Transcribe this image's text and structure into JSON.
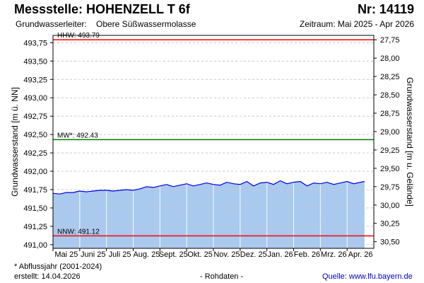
{
  "header": {
    "title": "Messstelle: HOHENZELL T 6f",
    "number": "Nr: 14119",
    "aquifer_label": "Grundwasserleiter:",
    "aquifer": "Obere Süßwassermolasse",
    "period": "Zeitraum: Mai 2025 - Apr 2026"
  },
  "footer": {
    "note": "* Abflussjahr (2001-2024)",
    "created": "erstellt:  14.04.2026",
    "raw": "- Rohdaten -",
    "source": "Quelle:  www.lfu.bayern.de"
  },
  "chart_data": {
    "type": "area",
    "ylabel_left": "Grundwasserstand [m ü. NN]",
    "ylabel_right": "Grundwasserstand [m u. Gelände]",
    "ylim": [
      490.95,
      493.85
    ],
    "y_ticks_left": [
      "491,00",
      "491,25",
      "491,50",
      "491,75",
      "492,00",
      "492,25",
      "492,50",
      "492,75",
      "493,00",
      "493,25",
      "493,50",
      "493,75"
    ],
    "y_ticks_left_values": [
      491.0,
      491.25,
      491.5,
      491.75,
      492.0,
      492.25,
      492.5,
      492.75,
      493.0,
      493.25,
      493.5,
      493.75
    ],
    "y_ticks_right": [
      "27,75",
      "28,00",
      "28,25",
      "28,50",
      "28,75",
      "29,00",
      "29,25",
      "29,50",
      "29,75",
      "30,00",
      "30,25",
      "30,50"
    ],
    "y_ticks_right_values": [
      27.75,
      28.0,
      28.25,
      28.5,
      28.75,
      29.0,
      29.25,
      29.5,
      29.75,
      30.0,
      30.25,
      30.5
    ],
    "right_axis_offset": 521.54,
    "x_ticks": [
      "Mai 25",
      "Juni 25",
      "Juli 25",
      "Aug. 25",
      "Sept. 25",
      "Okt. 25",
      "Nov. 25",
      "Dez. 25",
      "Jan. 26",
      "Feb. 26",
      "Mrz. 26",
      "Apr. 26"
    ],
    "x_range_months": [
      0,
      12
    ],
    "grid": true,
    "reference_lines": [
      {
        "label": "HHW: 493.79",
        "value": 493.79,
        "color": "#ff0000"
      },
      {
        "label": "MW*: 492.43",
        "value": 492.43,
        "color": "#008000"
      },
      {
        "label": "NNW: 491.12",
        "value": 491.12,
        "color": "#ff0000"
      }
    ],
    "series_color": "#0000dd",
    "fill_color": "#a9c9ef",
    "series": [
      {
        "x": [
          0.0,
          0.25,
          0.5,
          0.75,
          1.0,
          1.25,
          1.5,
          1.75,
          2.0,
          2.25,
          2.5,
          2.75,
          3.0,
          3.25,
          3.5,
          3.75,
          4.0,
          4.25,
          4.5,
          4.75,
          5.0,
          5.25,
          5.5,
          5.75,
          6.0,
          6.25,
          6.5,
          6.75,
          7.0,
          7.25,
          7.5,
          7.75,
          8.0,
          8.25,
          8.5,
          8.75,
          9.0,
          9.25,
          9.5,
          9.75,
          10.0,
          10.25,
          10.5,
          10.75,
          11.0,
          11.25,
          11.5,
          11.65
        ],
        "y": [
          491.7,
          491.69,
          491.71,
          491.71,
          491.73,
          491.72,
          491.73,
          491.74,
          491.74,
          491.73,
          491.74,
          491.75,
          491.74,
          491.76,
          491.79,
          491.78,
          491.8,
          491.82,
          491.79,
          491.81,
          491.83,
          491.8,
          491.82,
          491.84,
          491.82,
          491.81,
          491.85,
          491.83,
          491.82,
          491.86,
          491.8,
          491.84,
          491.85,
          491.82,
          491.87,
          491.83,
          491.85,
          491.86,
          491.8,
          491.84,
          491.83,
          491.85,
          491.82,
          491.84,
          491.86,
          491.83,
          491.85,
          491.86
        ]
      }
    ]
  }
}
